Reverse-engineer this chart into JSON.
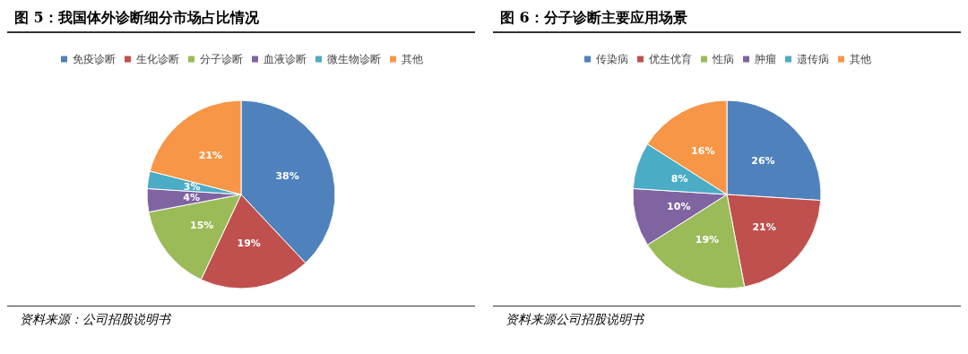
{
  "chart_data": [
    {
      "type": "pie",
      "title": "图 5：我国体外诊断细分市场占比情况",
      "categories": [
        "免疫诊断",
        "生化诊断",
        "分子诊断",
        "血液诊断",
        "微生物诊断",
        "其他"
      ],
      "values": [
        38,
        19,
        15,
        4,
        3,
        21
      ],
      "value_labels": [
        "38%",
        "19%",
        "15%",
        "4%",
        "3%",
        "21%"
      ],
      "colors": [
        "#4f81bd",
        "#c0504d",
        "#9bbb59",
        "#8064a2",
        "#4bacc6",
        "#f79646"
      ],
      "legend": "top",
      "annotations": [
        "资料来源：公司招股说明书"
      ]
    },
    {
      "type": "pie",
      "title": "图 6：分子诊断主要应用场景",
      "categories": [
        "传染病",
        "优生优育",
        "性病",
        "肿瘤",
        "遗传病",
        "其他"
      ],
      "values": [
        26,
        21,
        19,
        10,
        8,
        16
      ],
      "value_labels": [
        "26%",
        "21%",
        "19%",
        "10%",
        "8%",
        "16%"
      ],
      "colors": [
        "#4f81bd",
        "#c0504d",
        "#9bbb59",
        "#8064a2",
        "#4bacc6",
        "#f79646"
      ],
      "legend": "top",
      "annotations": [
        "资料来源公司招股说明书"
      ]
    }
  ]
}
